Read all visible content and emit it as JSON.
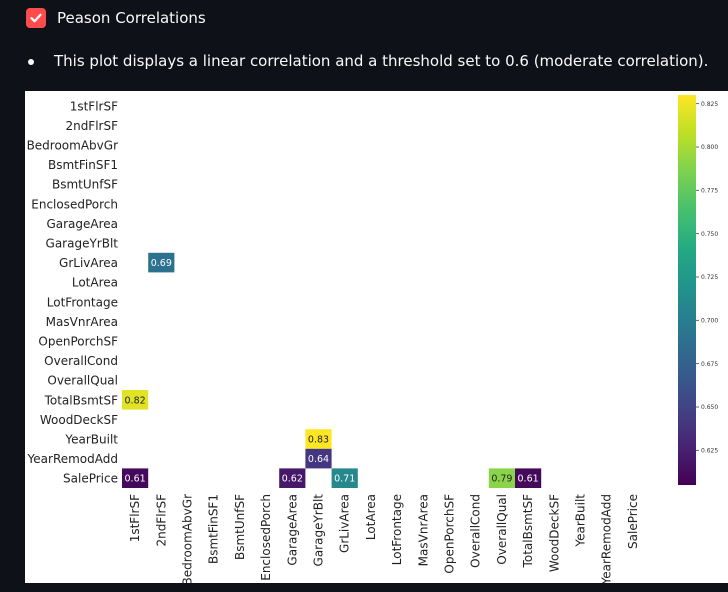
{
  "checkbox": {
    "label": "Peason Correlations",
    "checked": true
  },
  "description": "This plot displays a linear correlation and a threshold set to 0.6 (moderate correlation).",
  "colors": {
    "accent": "#ff4b4b",
    "background": "#0e1117",
    "chart_bg": "#ffffff"
  },
  "chart_data": {
    "type": "heatmap",
    "title": "",
    "colormap": "viridis",
    "rows": [
      "1stFlrSF",
      "2ndFlrSF",
      "BedroomAbvGr",
      "BsmtFinSF1",
      "BsmtUnfSF",
      "EnclosedPorch",
      "GarageArea",
      "GarageYrBlt",
      "GrLivArea",
      "LotArea",
      "LotFrontage",
      "MasVnrArea",
      "OpenPorchSF",
      "OverallCond",
      "OverallQual",
      "TotalBsmtSF",
      "WoodDeckSF",
      "YearBuilt",
      "YearRemodAdd",
      "SalePrice"
    ],
    "columns": [
      "1stFlrSF",
      "2ndFlrSF",
      "BedroomAbvGr",
      "BsmtFinSF1",
      "BsmtUnfSF",
      "EnclosedPorch",
      "GarageArea",
      "GarageYrBlt",
      "GrLivArea",
      "LotArea",
      "LotFrontage",
      "MasVnrArea",
      "OpenPorchSF",
      "OverallCond",
      "OverallQual",
      "TotalBsmtSF",
      "WoodDeckSF",
      "YearBuilt",
      "YearRemodAdd",
      "SalePrice"
    ],
    "cells": [
      {
        "row": "GrLivArea",
        "col": "2ndFlrSF",
        "value": 0.69
      },
      {
        "row": "TotalBsmtSF",
        "col": "1stFlrSF",
        "value": 0.82
      },
      {
        "row": "YearBuilt",
        "col": "GarageYrBlt",
        "value": 0.83
      },
      {
        "row": "YearRemodAdd",
        "col": "GarageYrBlt",
        "value": 0.64
      },
      {
        "row": "SalePrice",
        "col": "1stFlrSF",
        "value": 0.61
      },
      {
        "row": "SalePrice",
        "col": "GarageArea",
        "value": 0.62
      },
      {
        "row": "SalePrice",
        "col": "GrLivArea",
        "value": 0.71
      },
      {
        "row": "SalePrice",
        "col": "OverallQual",
        "value": 0.79
      },
      {
        "row": "SalePrice",
        "col": "TotalBsmtSF",
        "value": 0.61
      }
    ],
    "colorbar": {
      "range": [
        0.605,
        0.83
      ],
      "ticks": [
        0.625,
        0.65,
        0.675,
        0.7,
        0.725,
        0.75,
        0.775,
        0.8,
        0.825
      ],
      "tick_labels": [
        "0.625",
        "0.650",
        "0.675",
        "0.700",
        "0.725",
        "0.750",
        "0.775",
        "0.800",
        "0.825"
      ]
    }
  }
}
